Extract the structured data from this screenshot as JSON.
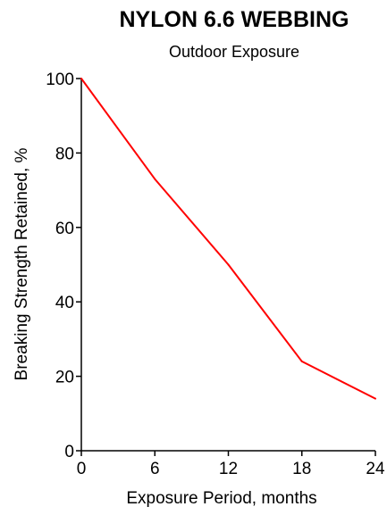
{
  "chart_data": {
    "type": "line",
    "title": "NYLON 6.6 WEBBING",
    "subtitle": "Outdoor Exposure",
    "xlabel": "Exposure Period, months",
    "ylabel": "Breaking Strength Retained, %",
    "xlim": [
      0,
      24
    ],
    "ylim": [
      0,
      100
    ],
    "x_ticks": [
      0,
      6,
      12,
      18,
      24
    ],
    "y_ticks": [
      0,
      20,
      40,
      60,
      80,
      100
    ],
    "x_tick_labels": [
      "0",
      "6",
      "12",
      "18",
      "24"
    ],
    "y_tick_labels": [
      "0",
      "20",
      "40",
      "60",
      "80",
      "100"
    ],
    "grid": false,
    "line_color": "#ff0000",
    "series": [
      {
        "x": [
          0,
          6,
          12,
          18,
          24
        ],
        "values": [
          100,
          73,
          50,
          24,
          14
        ]
      }
    ]
  }
}
